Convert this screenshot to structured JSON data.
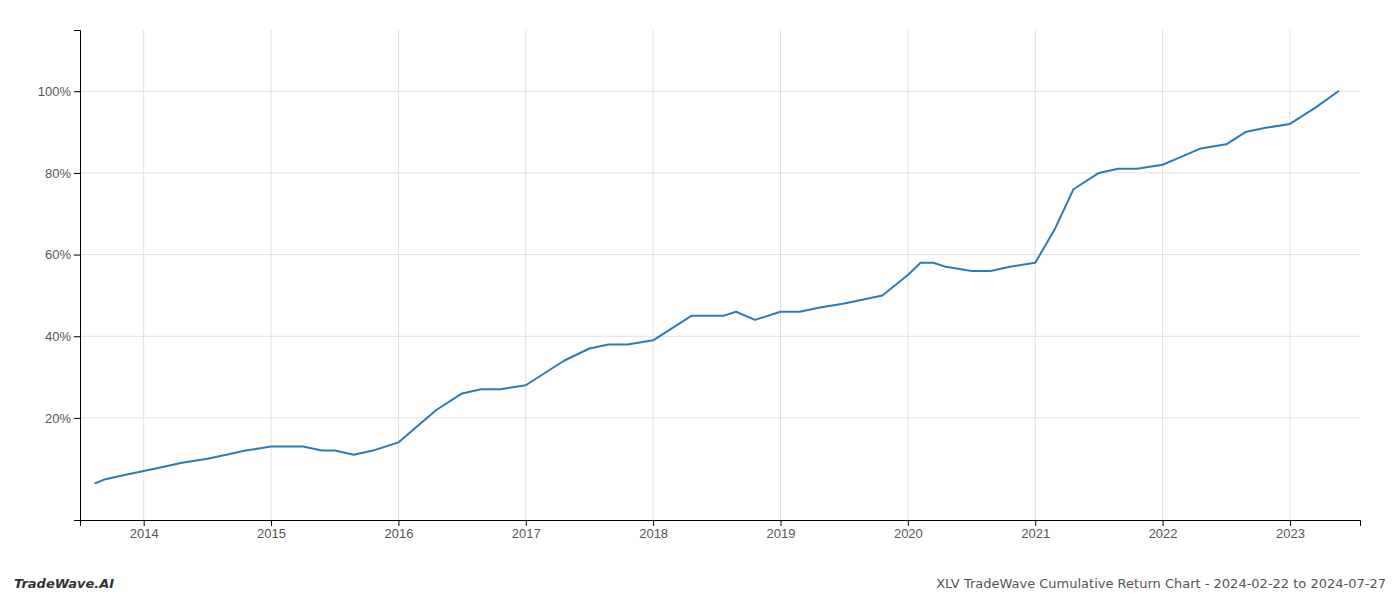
{
  "chart_data": {
    "type": "line",
    "x": [
      2013.62,
      2013.7,
      2013.85,
      2014.0,
      2014.15,
      2014.3,
      2014.5,
      2014.65,
      2014.8,
      2015.0,
      2015.15,
      2015.25,
      2015.4,
      2015.5,
      2015.65,
      2015.8,
      2016.0,
      2016.15,
      2016.3,
      2016.5,
      2016.65,
      2016.8,
      2017.0,
      2017.15,
      2017.3,
      2017.5,
      2017.65,
      2017.8,
      2018.0,
      2018.15,
      2018.3,
      2018.5,
      2018.55,
      2018.65,
      2018.8,
      2019.0,
      2019.15,
      2019.3,
      2019.5,
      2019.65,
      2019.8,
      2020.0,
      2020.1,
      2020.2,
      2020.3,
      2020.5,
      2020.65,
      2020.8,
      2021.0,
      2021.15,
      2021.3,
      2021.5,
      2021.65,
      2021.8,
      2022.0,
      2022.15,
      2022.3,
      2022.5,
      2022.65,
      2022.8,
      2023.0,
      2023.2,
      2023.38
    ],
    "values": [
      4,
      5,
      6,
      7,
      8,
      9,
      10,
      11,
      12,
      13,
      13,
      13,
      12,
      12,
      11,
      12,
      14,
      18,
      22,
      26,
      27,
      27,
      28,
      31,
      34,
      37,
      38,
      38,
      39,
      42,
      45,
      45,
      45,
      46,
      44,
      46,
      46,
      47,
      48,
      49,
      50,
      55,
      58,
      58,
      57,
      56,
      56,
      57,
      58,
      66,
      76,
      80,
      81,
      81,
      82,
      84,
      86,
      87,
      90,
      91,
      92,
      96,
      100
    ],
    "color": "#2b7bba",
    "xlim": [
      2013.5,
      2023.55
    ],
    "ylim": [
      -5,
      115
    ],
    "xticks": [
      2014,
      2015,
      2016,
      2017,
      2018,
      2019,
      2020,
      2021,
      2022,
      2023
    ],
    "yticks": [
      {
        "value": 20,
        "label": "20%"
      },
      {
        "value": 40,
        "label": "40%"
      },
      {
        "value": 60,
        "label": "60%"
      },
      {
        "value": 80,
        "label": "80%"
      },
      {
        "value": 100,
        "label": "100%"
      }
    ],
    "grid": true,
    "annotations": [
      "TradeWave.AI",
      "XLV TradeWave Cumulative Return Chart - 2024-02-22 to 2024-07-27"
    ]
  }
}
